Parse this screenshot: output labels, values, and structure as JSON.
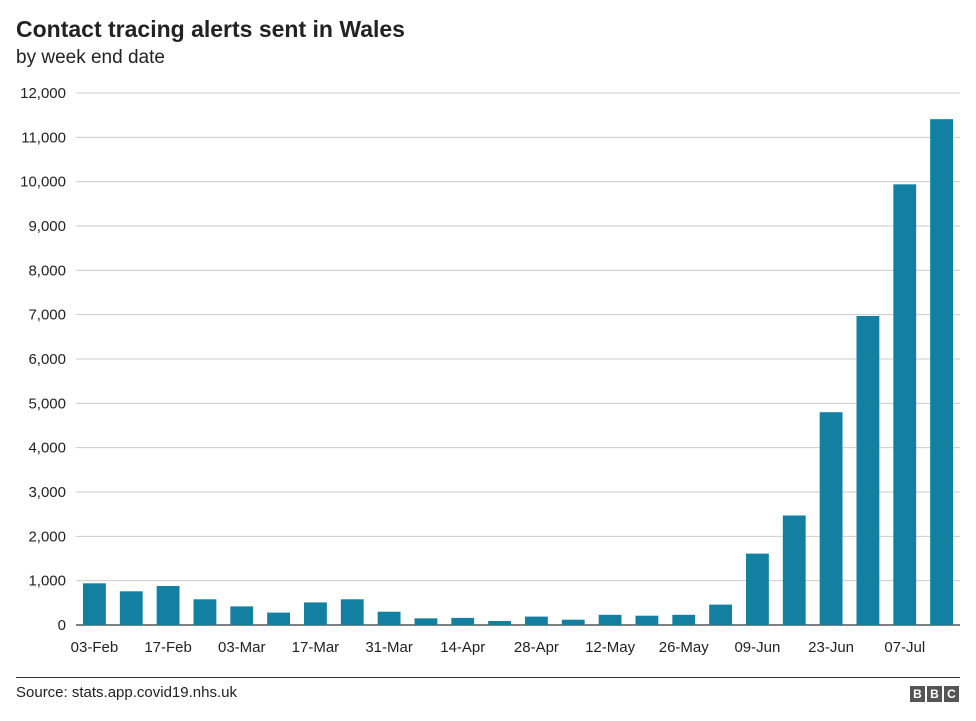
{
  "chart_data": {
    "type": "bar",
    "title": "Contact tracing alerts sent in Wales",
    "subtitle": "by week end date",
    "xlabel": "",
    "ylabel": "",
    "ylim": [
      0,
      12000
    ],
    "yticks": [
      0,
      1000,
      2000,
      3000,
      4000,
      5000,
      6000,
      7000,
      8000,
      9000,
      10000,
      11000,
      12000
    ],
    "ytick_labels": [
      "0",
      "1,000",
      "2,000",
      "3,000",
      "4,000",
      "5,000",
      "6,000",
      "7,000",
      "8,000",
      "9,000",
      "10,000",
      "11,000",
      "12,000"
    ],
    "xtick_labels": [
      "03-Feb",
      "17-Feb",
      "03-Mar",
      "17-Mar",
      "31-Mar",
      "14-Apr",
      "28-Apr",
      "12-May",
      "26-May",
      "09-Jun",
      "23-Jun",
      "07-Jul"
    ],
    "xtick_every": 2,
    "values": [
      940,
      760,
      880,
      580,
      420,
      280,
      510,
      580,
      300,
      150,
      160,
      90,
      190,
      120,
      230,
      210,
      230,
      460,
      1610,
      2470,
      4800,
      6970,
      9940,
      11410
    ],
    "grid": true,
    "bar_color": "#1380A1",
    "grid_color": "#cbcbcb",
    "source": "Source: stats.app.covid19.nhs.uk",
    "logo": [
      "B",
      "B",
      "C"
    ]
  }
}
